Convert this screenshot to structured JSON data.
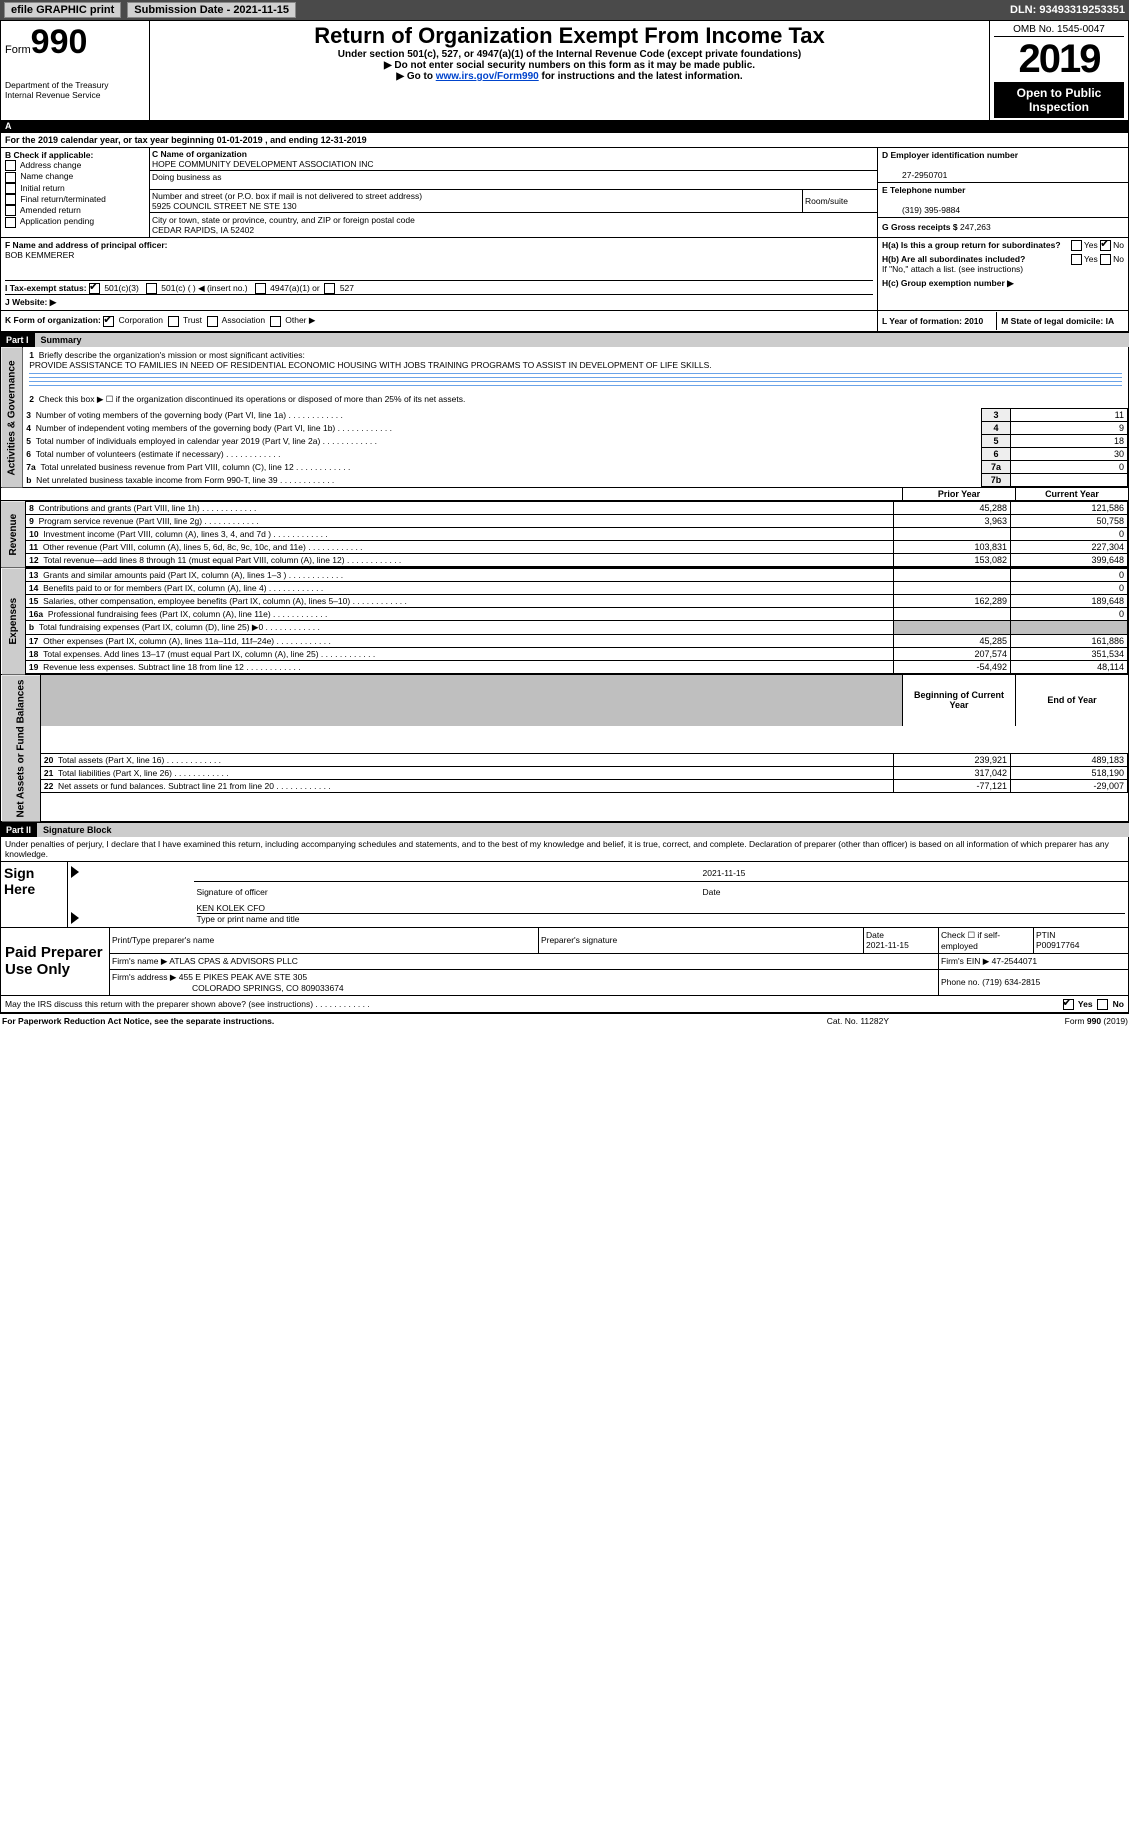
{
  "topbar": {
    "efile": "efile GRAPHIC print",
    "submission": "Submission Date - 2021-11-15",
    "dln": "DLN: 93493319253351"
  },
  "header": {
    "form_label": "Form",
    "form_no": "990",
    "dept": "Department of the Treasury\nInternal Revenue Service",
    "title": "Return of Organization Exempt From Income Tax",
    "subtitle": "Under section 501(c), 527, or 4947(a)(1) of the Internal Revenue Code (except private foundations)",
    "note1": "▶ Do not enter social security numbers on this form as it may be made public.",
    "note2_pre": "▶ Go to ",
    "note2_link": "www.irs.gov/Form990",
    "note2_post": " for instructions and the latest information.",
    "omb": "OMB No. 1545-0047",
    "year": "2019",
    "open": "Open to Public Inspection"
  },
  "lineA": "For the 2019 calendar year, or tax year beginning 01-01-2019   , and ending 12-31-2019",
  "boxB": {
    "title": "B Check if applicable:",
    "items": [
      "Address change",
      "Name change",
      "Initial return",
      "Final return/terminated",
      "Amended return",
      "Application pending"
    ]
  },
  "boxC": {
    "label": "C Name of organization",
    "name": "HOPE COMMUNITY DEVELOPMENT ASSOCIATION INC",
    "dba": "Doing business as",
    "addr_lbl": "Number and street (or P.O. box if mail is not delivered to street address)",
    "room": "Room/suite",
    "addr": "5925 COUNCIL STREET NE STE 130",
    "city_lbl": "City or town, state or province, country, and ZIP or foreign postal code",
    "city": "CEDAR RAPIDS, IA  52402"
  },
  "boxD": {
    "label": "D Employer identification number",
    "val": "27-2950701"
  },
  "boxE": {
    "label": "E Telephone number",
    "val": "(319) 395-9884"
  },
  "boxG": {
    "label": "G Gross receipts $",
    "val": "247,263"
  },
  "boxF": {
    "label": "F  Name and address of principal officer:",
    "val": "BOB KEMMERER"
  },
  "boxH": {
    "a": "H(a)  Is this a group return for subordinates?",
    "b": "H(b)  Are all subordinates included?",
    "b_note": "If \"No,\" attach a list. (see instructions)",
    "c": "H(c)  Group exemption number ▶",
    "yes": "Yes",
    "no": "No"
  },
  "lineI": {
    "label": "I   Tax-exempt status:",
    "o1": "501(c)(3)",
    "o2": "501(c) (  ) ◀ (insert no.)",
    "o3": "4947(a)(1) or",
    "o4": "527"
  },
  "lineJ": "J   Website: ▶",
  "lineK": {
    "label": "K Form of organization:",
    "o1": "Corporation",
    "o2": "Trust",
    "o3": "Association",
    "o4": "Other ▶"
  },
  "lineL": "L Year of formation: 2010",
  "lineM": "M State of legal domicile: IA",
  "part1": {
    "hdr": "Part I",
    "title": "Summary",
    "l1": "Briefly describe the organization's mission or most significant activities:",
    "mission": "PROVIDE ASSISTANCE TO FAMILIES IN NEED OF RESIDENTIAL ECONOMIC HOUSING WITH JOBS TRAINING PROGRAMS TO ASSIST IN DEVELOPMENT OF LIFE SKILLS.",
    "l2": "Check this box ▶ ☐  if the organization discontinued its operations or disposed of more than 25% of its net assets.",
    "rows_top": [
      {
        "n": "3",
        "t": "Number of voting members of the governing body (Part VI, line 1a)",
        "c": "3",
        "v": "11"
      },
      {
        "n": "4",
        "t": "Number of independent voting members of the governing body (Part VI, line 1b)",
        "c": "4",
        "v": "9"
      },
      {
        "n": "5",
        "t": "Total number of individuals employed in calendar year 2019 (Part V, line 2a)",
        "c": "5",
        "v": "18"
      },
      {
        "n": "6",
        "t": "Total number of volunteers (estimate if necessary)",
        "c": "6",
        "v": "30"
      },
      {
        "n": "7a",
        "t": "Total unrelated business revenue from Part VIII, column (C), line 12",
        "c": "7a",
        "v": "0"
      },
      {
        "n": "b",
        "t": "Net unrelated business taxable income from Form 990-T, line 39",
        "c": "7b",
        "v": ""
      }
    ],
    "col_prior": "Prior Year",
    "col_curr": "Current Year",
    "rev": [
      {
        "n": "8",
        "t": "Contributions and grants (Part VIII, line 1h)",
        "p": "45,288",
        "c": "121,586"
      },
      {
        "n": "9",
        "t": "Program service revenue (Part VIII, line 2g)",
        "p": "3,963",
        "c": "50,758"
      },
      {
        "n": "10",
        "t": "Investment income (Part VIII, column (A), lines 3, 4, and 7d )",
        "p": "",
        "c": "0"
      },
      {
        "n": "11",
        "t": "Other revenue (Part VIII, column (A), lines 5, 6d, 8c, 9c, 10c, and 11e)",
        "p": "103,831",
        "c": "227,304"
      },
      {
        "n": "12",
        "t": "Total revenue—add lines 8 through 11 (must equal Part VIII, column (A), line 12)",
        "p": "153,082",
        "c": "399,648"
      }
    ],
    "exp": [
      {
        "n": "13",
        "t": "Grants and similar amounts paid (Part IX, column (A), lines 1–3 )",
        "p": "",
        "c": "0"
      },
      {
        "n": "14",
        "t": "Benefits paid to or for members (Part IX, column (A), line 4)",
        "p": "",
        "c": "0"
      },
      {
        "n": "15",
        "t": "Salaries, other compensation, employee benefits (Part IX, column (A), lines 5–10)",
        "p": "162,289",
        "c": "189,648"
      },
      {
        "n": "16a",
        "t": "Professional fundraising fees (Part IX, column (A), line 11e)",
        "p": "",
        "c": "0"
      },
      {
        "n": "b",
        "t": "Total fundraising expenses (Part IX, column (D), line 25) ▶0",
        "p": "shade",
        "c": "shade"
      },
      {
        "n": "17",
        "t": "Other expenses (Part IX, column (A), lines 11a–11d, 11f–24e)",
        "p": "45,285",
        "c": "161,886"
      },
      {
        "n": "18",
        "t": "Total expenses. Add lines 13–17 (must equal Part IX, column (A), line 25)",
        "p": "207,574",
        "c": "351,534"
      },
      {
        "n": "19",
        "t": "Revenue less expenses. Subtract line 18 from line 12",
        "p": "-54,492",
        "c": "48,114"
      }
    ],
    "col_beg": "Beginning of Current Year",
    "col_end": "End of Year",
    "net": [
      {
        "n": "20",
        "t": "Total assets (Part X, line 16)",
        "p": "239,921",
        "c": "489,183"
      },
      {
        "n": "21",
        "t": "Total liabilities (Part X, line 26)",
        "p": "317,042",
        "c": "518,190"
      },
      {
        "n": "22",
        "t": "Net assets or fund balances. Subtract line 21 from line 20",
        "p": "-77,121",
        "c": "-29,007"
      }
    ],
    "vlabels": {
      "gov": "Activities & Governance",
      "rev": "Revenue",
      "exp": "Expenses",
      "net": "Net Assets or Fund Balances"
    }
  },
  "part2": {
    "hdr": "Part II",
    "title": "Signature Block",
    "decl": "Under penalties of perjury, I declare that I have examined this return, including accompanying schedules and statements, and to the best of my knowledge and belief, it is true, correct, and complete. Declaration of preparer (other than officer) is based on all information of which preparer has any knowledge.",
    "sign_here": "Sign Here",
    "sig_date": "2021-11-15",
    "sig_of": "Signature of officer",
    "date": "Date",
    "officer": "KEN KOLEK CFO",
    "officer_lbl": "Type or print name and title",
    "paid": "Paid Preparer Use Only",
    "pp_name_lbl": "Print/Type preparer's name",
    "pp_sig_lbl": "Preparer's signature",
    "pp_date_lbl": "Date",
    "pp_date": "2021-11-15",
    "pp_self": "Check ☐ if self-employed",
    "ptin_lbl": "PTIN",
    "ptin": "P00917764",
    "firm_name_lbl": "Firm's name  ▶",
    "firm_name": "ATLAS CPAS & ADVISORS PLLC",
    "firm_ein_lbl": "Firm's EIN ▶",
    "firm_ein": "47-2544071",
    "firm_addr_lbl": "Firm's address ▶",
    "firm_addr": "455 E PIKES PEAK AVE STE 305",
    "firm_city": "COLORADO SPRINGS, CO  809033674",
    "phone_lbl": "Phone no.",
    "phone": "(719) 634-2815",
    "discuss": "May the IRS discuss this return with the preparer shown above? (see instructions)"
  },
  "footer": {
    "left": "For Paperwork Reduction Act Notice, see the separate instructions.",
    "mid": "Cat. No. 11282Y",
    "right": "Form 990 (2019)"
  }
}
